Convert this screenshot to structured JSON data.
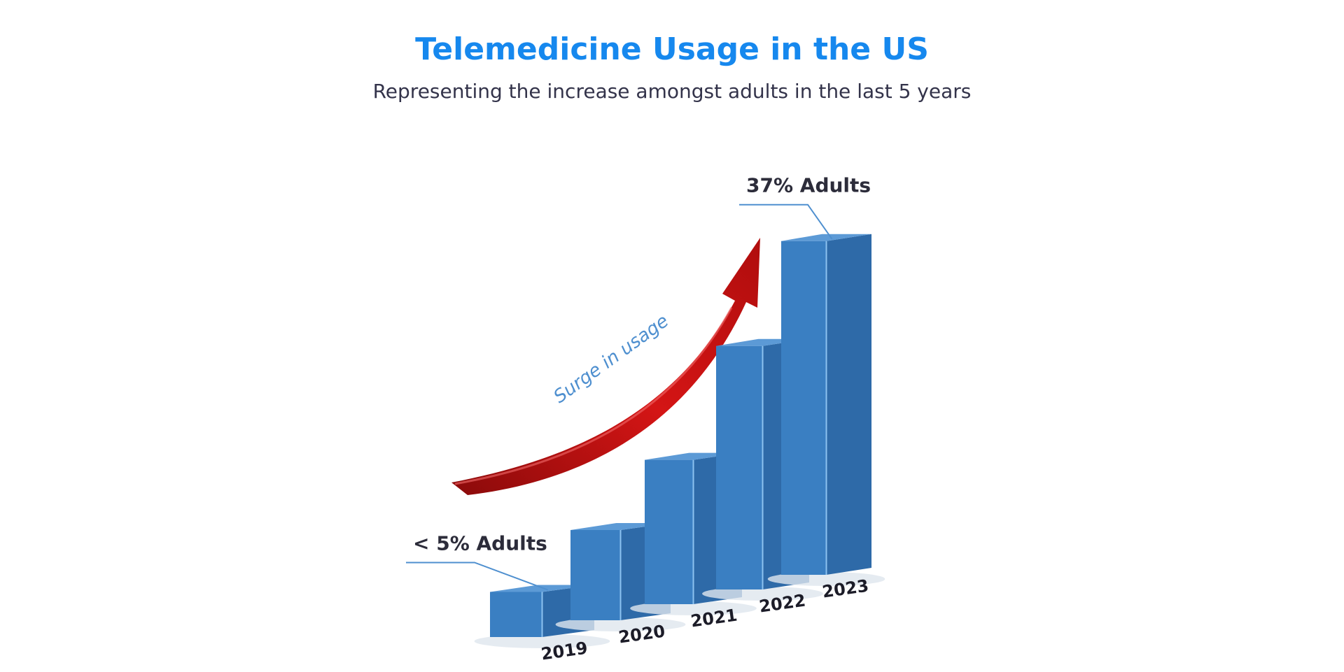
{
  "chart_data": {
    "type": "bar3d",
    "title": "Telemedicine Usage in the US",
    "subtitle": "Representing the increase amongst adults in the last 5 years",
    "categories": [
      "2019",
      "2020",
      "2021",
      "2022",
      "2023"
    ],
    "values": [
      5,
      10,
      16,
      27,
      37
    ],
    "value_labels": [
      "< 5% Adults",
      null,
      null,
      null,
      "37% Adults"
    ],
    "annotation": "Surge in usage",
    "color": "#3a7fc2"
  }
}
